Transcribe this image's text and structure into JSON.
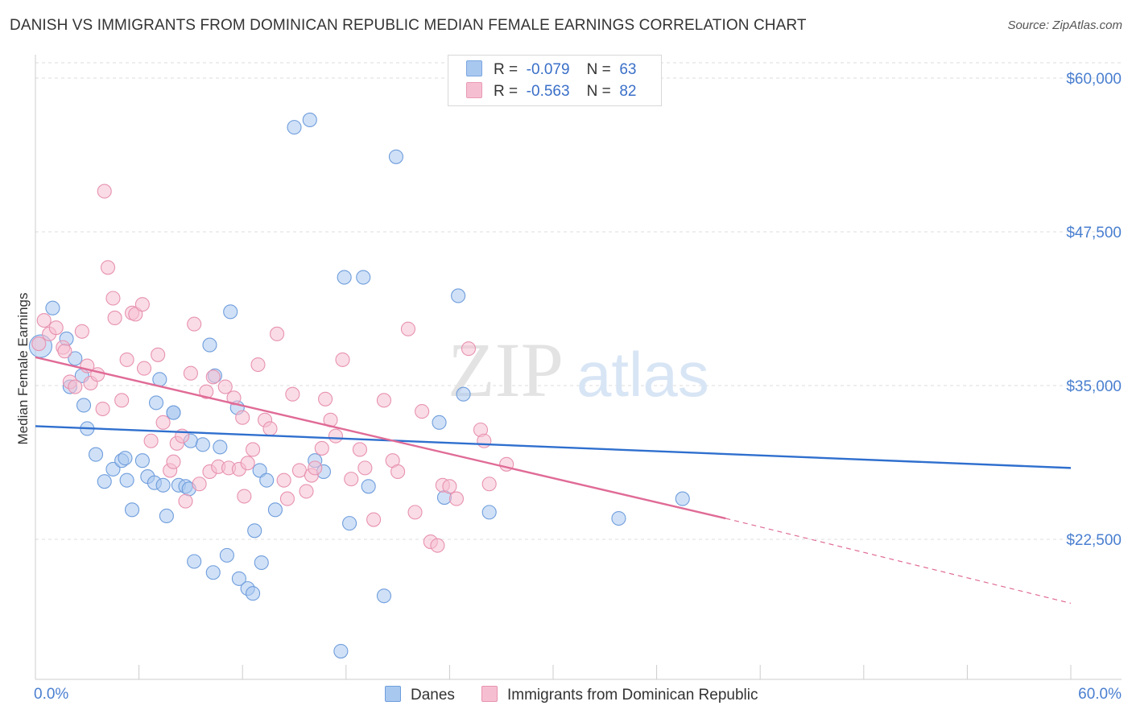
{
  "title": "DANISH VS IMMIGRANTS FROM DOMINICAN REPUBLIC MEDIAN FEMALE EARNINGS CORRELATION CHART",
  "source": "Source: ZipAtlas.com",
  "watermark": {
    "zip": "ZIP",
    "atlas": "atlas"
  },
  "legend_stats": [
    {
      "r_label": "R =",
      "r_value": "-0.079",
      "n_label": "N =",
      "n_value": "63",
      "color": "#a9c8f0",
      "border": "#7aa6e0"
    },
    {
      "r_label": "R =",
      "r_value": "-0.563",
      "n_label": "N =",
      "n_value": "82",
      "color": "#f6bfd1",
      "border": "#e99ab5"
    }
  ],
  "chart_data": {
    "type": "scatter",
    "title": "DANISH VS IMMIGRANTS FROM DOMINICAN REPUBLIC MEDIAN FEMALE EARNINGS CORRELATION CHART",
    "xlabel": "",
    "ylabel": "Median Female Earnings",
    "xlim": [
      0,
      60
    ],
    "ylim": [
      11000,
      62000
    ],
    "x_tick_labels": [
      "0.0%",
      "60.0%"
    ],
    "y_ticks": [
      {
        "value": 22500,
        "label": "$22,500"
      },
      {
        "value": 35000,
        "label": "$35,000"
      },
      {
        "value": 47500,
        "label": "$47,500"
      },
      {
        "value": 60000,
        "label": "$60,000"
      }
    ],
    "grid": "horizontal dashed",
    "legend_position": "bottom",
    "series": [
      {
        "name": "Danes",
        "color": "#a9c8f0",
        "edge": "#6f9ddc",
        "trend": {
          "x": [
            0,
            60
          ],
          "y": [
            31700,
            28300
          ],
          "color": "#2f6fce"
        },
        "points": [
          [
            0.3,
            38200
          ],
          [
            1.0,
            41300
          ],
          [
            1.8,
            38800
          ],
          [
            2.3,
            37200
          ],
          [
            2.8,
            33400
          ],
          [
            2.7,
            35800
          ],
          [
            2.0,
            34900
          ],
          [
            3.0,
            31500
          ],
          [
            3.5,
            29400
          ],
          [
            4.0,
            27200
          ],
          [
            4.5,
            28200
          ],
          [
            5.0,
            28900
          ],
          [
            5.2,
            29100
          ],
          [
            5.3,
            27300
          ],
          [
            5.6,
            24900
          ],
          [
            6.2,
            28900
          ],
          [
            6.5,
            27600
          ],
          [
            6.9,
            27100
          ],
          [
            7.0,
            33600
          ],
          [
            7.2,
            35500
          ],
          [
            7.4,
            26900
          ],
          [
            7.6,
            24400
          ],
          [
            8.0,
            32800
          ],
          [
            8.3,
            26900
          ],
          [
            8.7,
            26800
          ],
          [
            8.9,
            26600
          ],
          [
            9.0,
            30500
          ],
          [
            9.2,
            20700
          ],
          [
            9.7,
            30200
          ],
          [
            10.1,
            38300
          ],
          [
            10.3,
            19800
          ],
          [
            10.4,
            35800
          ],
          [
            10.7,
            30000
          ],
          [
            11.1,
            21200
          ],
          [
            11.3,
            41000
          ],
          [
            11.7,
            33200
          ],
          [
            11.8,
            19300
          ],
          [
            12.3,
            18500
          ],
          [
            12.6,
            18100
          ],
          [
            12.7,
            23200
          ],
          [
            13.0,
            28100
          ],
          [
            13.1,
            20600
          ],
          [
            13.4,
            27300
          ],
          [
            13.9,
            24900
          ],
          [
            15.0,
            56000
          ],
          [
            15.9,
            56600
          ],
          [
            16.2,
            28900
          ],
          [
            16.7,
            28000
          ],
          [
            17.7,
            13400
          ],
          [
            17.9,
            43800
          ],
          [
            18.2,
            23800
          ],
          [
            19.0,
            43800
          ],
          [
            19.3,
            26800
          ],
          [
            20.2,
            17900
          ],
          [
            20.9,
            53600
          ],
          [
            23.4,
            32000
          ],
          [
            23.7,
            25900
          ],
          [
            24.5,
            42300
          ],
          [
            24.8,
            34300
          ],
          [
            26.3,
            24700
          ],
          [
            33.8,
            24200
          ],
          [
            37.5,
            25800
          ],
          [
            8.0,
            32800
          ]
        ]
      },
      {
        "name": "Immigrants from Dominican Republic",
        "color": "#f6bfd1",
        "edge": "#e792b0",
        "trend": {
          "x": [
            0,
            40
          ],
          "y": [
            37300,
            24200
          ],
          "color": "#e06b96"
        },
        "trend_dashed": {
          "x": [
            40,
            60
          ],
          "y": [
            24200,
            17300
          ]
        },
        "points": [
          [
            0.2,
            38400
          ],
          [
            0.5,
            40300
          ],
          [
            0.8,
            39200
          ],
          [
            1.2,
            39700
          ],
          [
            1.6,
            38100
          ],
          [
            1.7,
            37800
          ],
          [
            2.0,
            35300
          ],
          [
            2.3,
            34900
          ],
          [
            2.7,
            39400
          ],
          [
            3.0,
            36600
          ],
          [
            3.2,
            35200
          ],
          [
            3.6,
            35900
          ],
          [
            4.0,
            50800
          ],
          [
            4.2,
            44600
          ],
          [
            4.5,
            42100
          ],
          [
            4.6,
            40500
          ],
          [
            5.0,
            33800
          ],
          [
            5.3,
            37100
          ],
          [
            5.6,
            40900
          ],
          [
            5.8,
            40800
          ],
          [
            6.2,
            41600
          ],
          [
            6.3,
            36400
          ],
          [
            6.7,
            30500
          ],
          [
            7.1,
            37500
          ],
          [
            7.4,
            32000
          ],
          [
            7.8,
            28100
          ],
          [
            8.0,
            28800
          ],
          [
            8.2,
            30300
          ],
          [
            8.5,
            30900
          ],
          [
            8.7,
            25600
          ],
          [
            9.0,
            36000
          ],
          [
            9.2,
            40000
          ],
          [
            9.5,
            27000
          ],
          [
            9.9,
            34500
          ],
          [
            10.1,
            28000
          ],
          [
            10.3,
            35700
          ],
          [
            10.6,
            28400
          ],
          [
            11.0,
            34900
          ],
          [
            11.2,
            28300
          ],
          [
            11.5,
            34000
          ],
          [
            11.8,
            28200
          ],
          [
            12.1,
            26000
          ],
          [
            12.3,
            28700
          ],
          [
            12.6,
            29800
          ],
          [
            12.9,
            36700
          ],
          [
            13.3,
            32200
          ],
          [
            13.6,
            31500
          ],
          [
            14.0,
            39200
          ],
          [
            14.4,
            27300
          ],
          [
            14.6,
            25800
          ],
          [
            14.9,
            34300
          ],
          [
            15.3,
            28100
          ],
          [
            15.7,
            26400
          ],
          [
            16.0,
            27700
          ],
          [
            16.2,
            28300
          ],
          [
            16.8,
            33900
          ],
          [
            17.1,
            32200
          ],
          [
            17.4,
            30900
          ],
          [
            17.8,
            37100
          ],
          [
            18.3,
            27400
          ],
          [
            18.8,
            29800
          ],
          [
            19.1,
            28300
          ],
          [
            19.6,
            24100
          ],
          [
            20.2,
            33800
          ],
          [
            20.7,
            28900
          ],
          [
            21.0,
            28000
          ],
          [
            21.6,
            39600
          ],
          [
            22.0,
            24700
          ],
          [
            22.4,
            32900
          ],
          [
            22.9,
            22300
          ],
          [
            23.3,
            22000
          ],
          [
            23.6,
            26900
          ],
          [
            24.0,
            26800
          ],
          [
            24.4,
            25800
          ],
          [
            25.1,
            38000
          ],
          [
            25.8,
            31400
          ],
          [
            26.0,
            30500
          ],
          [
            26.3,
            27000
          ],
          [
            27.3,
            28600
          ],
          [
            3.9,
            33100
          ],
          [
            16.6,
            29900
          ],
          [
            12.0,
            32400
          ]
        ]
      }
    ]
  },
  "x_axis": {
    "left_label": "0.0%",
    "right_label": "60.0%"
  },
  "bottom_legend": [
    {
      "label": "Danes",
      "color": "#a9c8f0",
      "border": "#6f9ddc"
    },
    {
      "label": "Immigrants from Dominican Republic",
      "color": "#f6bfd1",
      "border": "#e792b0"
    }
  ]
}
